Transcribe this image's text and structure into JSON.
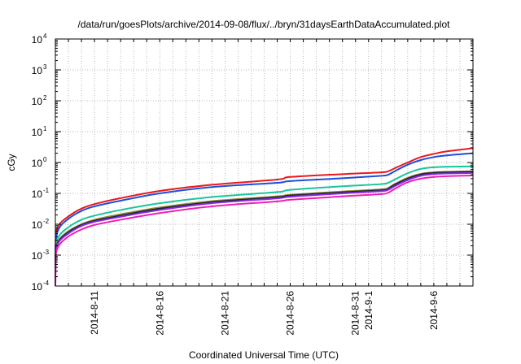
{
  "chart_data": {
    "type": "line",
    "title": "/data/run/goesPlots/archive/2014-09-08/flux/../bryn/31daysEarthDataAccumulated.plot",
    "xlabel": "Coordinated Universal Time (UTC)",
    "ylabel": "cGy",
    "yscale": "log",
    "ylim": [
      0.0001,
      10000
    ],
    "xlim": [
      "2014-08-08",
      "2014-09-09"
    ],
    "ytick_labels": [
      {
        "base": "10",
        "exp": "-4"
      },
      {
        "base": "10",
        "exp": "-3"
      },
      {
        "base": "10",
        "exp": "-2"
      },
      {
        "base": "10",
        "exp": "-1"
      },
      {
        "base": "10",
        "exp": "0"
      },
      {
        "base": "10",
        "exp": "1"
      },
      {
        "base": "10",
        "exp": "2"
      },
      {
        "base": "10",
        "exp": "3"
      },
      {
        "base": "10",
        "exp": "4"
      }
    ],
    "xtick_labels": [
      "2014-8-11",
      "2014-8-16",
      "2014-8-21",
      "2014-8-26",
      "2014-8-31",
      "2014-9-1",
      "2014-9-6"
    ],
    "grid": true,
    "x": [
      "2014-08-08T00:00",
      "2014-08-08T00:30",
      "2014-08-08T06:00",
      "2014-08-09",
      "2014-08-10",
      "2014-08-11",
      "2014-08-13",
      "2014-08-16",
      "2014-08-20",
      "2014-08-25",
      "2014-08-26",
      "2014-08-30",
      "2014-09-02",
      "2014-09-02T12:00",
      "2014-09-03",
      "2014-09-04",
      "2014-09-05",
      "2014-09-06",
      "2014-09-07",
      "2014-09-09"
    ],
    "series": [
      {
        "color": "#e8191c",
        "values": [
          0.0001,
          0.003,
          0.009,
          0.018,
          0.032,
          0.045,
          0.07,
          0.12,
          0.19,
          0.28,
          0.34,
          0.42,
          0.48,
          0.52,
          0.65,
          1.0,
          1.5,
          1.9,
          2.3,
          2.9
        ]
      },
      {
        "color": "#1d4ed8",
        "values": [
          0.0001,
          0.002,
          0.007,
          0.015,
          0.027,
          0.038,
          0.058,
          0.1,
          0.16,
          0.22,
          0.25,
          0.31,
          0.37,
          0.4,
          0.52,
          0.85,
          1.2,
          1.5,
          1.7,
          2.0
        ]
      },
      {
        "color": "#19c59c",
        "values": [
          0.0001,
          0.0015,
          0.004,
          0.008,
          0.014,
          0.019,
          0.029,
          0.048,
          0.076,
          0.11,
          0.13,
          0.17,
          0.2,
          0.22,
          0.28,
          0.45,
          0.62,
          0.7,
          0.73,
          0.75
        ]
      },
      {
        "color": "#8b8b2e",
        "values": [
          0.0001,
          0.0012,
          0.003,
          0.006,
          0.01,
          0.014,
          0.021,
          0.035,
          0.056,
          0.08,
          0.09,
          0.115,
          0.135,
          0.15,
          0.2,
          0.32,
          0.43,
          0.48,
          0.5,
          0.52
        ]
      },
      {
        "color": "#22223a",
        "values": [
          0.0001,
          0.0011,
          0.0028,
          0.0055,
          0.0095,
          0.013,
          0.019,
          0.032,
          0.052,
          0.075,
          0.085,
          0.108,
          0.127,
          0.14,
          0.19,
          0.3,
          0.41,
          0.46,
          0.48,
          0.5
        ]
      },
      {
        "color": "#8a2be2",
        "values": [
          0.0001,
          0.001,
          0.0026,
          0.005,
          0.0088,
          0.012,
          0.0175,
          0.029,
          0.048,
          0.069,
          0.078,
          0.1,
          0.118,
          0.13,
          0.17,
          0.27,
          0.37,
          0.42,
          0.44,
          0.46
        ]
      },
      {
        "color": "#ee1fb4",
        "values": [
          0.0001,
          0.0008,
          0.002,
          0.004,
          0.0068,
          0.0095,
          0.014,
          0.023,
          0.038,
          0.055,
          0.062,
          0.08,
          0.095,
          0.105,
          0.14,
          0.23,
          0.3,
          0.34,
          0.36,
          0.38
        ]
      }
    ]
  }
}
